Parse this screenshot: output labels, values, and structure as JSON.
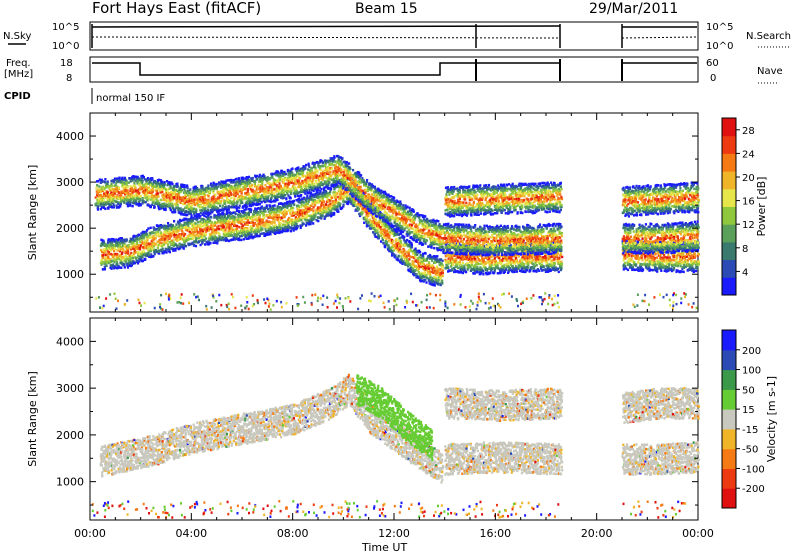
{
  "header": {
    "station": "Fort Hays East (fitACF)",
    "beam": "Beam 15",
    "date": "29/Mar/2011"
  },
  "top_panels": {
    "noise": {
      "left_label": "N.Sky",
      "right_label": "N.Search",
      "left_ticks": [
        "10^5",
        "10^0"
      ],
      "right_ticks": [
        "10^5",
        "10^0"
      ]
    },
    "freq": {
      "left_label_1": "Freq.",
      "left_label_2": "[MHz]",
      "left_ticks": [
        "18",
        "8"
      ],
      "right_label": "Nave",
      "right_ticks": [
        "60",
        "0"
      ]
    },
    "cpid": {
      "label": "CPID",
      "mode": "normal 150 IF"
    }
  },
  "chart_data": [
    {
      "type": "heatmap",
      "quantity": "power",
      "ylabel": "Slant Range [km]",
      "xlabel": "Time UT",
      "x_ticks": [
        "00:00",
        "04:00",
        "08:00",
        "12:00",
        "16:00",
        "20:00",
        "00:00"
      ],
      "x_range_hours": [
        0,
        24
      ],
      "y_ticks": [
        1000,
        2000,
        3000,
        4000
      ],
      "y_range_km": [
        180,
        4500
      ],
      "colorbar": {
        "label": "Power [dB]",
        "ticks": [
          4,
          8,
          12,
          16,
          20,
          24,
          28
        ],
        "range": [
          0,
          30
        ],
        "colors": [
          "#1a1aff",
          "#2b4ab5",
          "#3a7a6e",
          "#5aa05a",
          "#8fc83c",
          "#e6e64b",
          "#f0b429",
          "#f57a14",
          "#ee3a10",
          "#e01010"
        ]
      },
      "data_gap_hours": [
        18.6,
        21.0
      ],
      "echo_bands": [
        {
          "name": "main-band",
          "points": [
            [
              0.4,
              1450
            ],
            [
              1.5,
              1500
            ],
            [
              2.5,
              1750
            ],
            [
              4,
              1950
            ],
            [
              6,
              2100
            ],
            [
              8,
              2300
            ],
            [
              9.5,
              2600
            ],
            [
              10.2,
              2900
            ],
            [
              11,
              2300
            ],
            [
              12,
              1700
            ],
            [
              13,
              1200
            ],
            [
              13.9,
              1050
            ]
          ]
        },
        {
          "name": "upper-band",
          "points": [
            [
              0.2,
              2750
            ],
            [
              2,
              2850
            ],
            [
              4,
              2600
            ],
            [
              6,
              2800
            ],
            [
              8,
              3000
            ],
            [
              9.8,
              3300
            ],
            [
              11,
              2700
            ],
            [
              13,
              2000
            ],
            [
              14,
              1800
            ]
          ]
        },
        {
          "name": "band-16h-low",
          "points": [
            [
              14,
              1400
            ],
            [
              15.5,
              1350
            ],
            [
              17,
              1400
            ],
            [
              18.6,
              1400
            ]
          ]
        },
        {
          "name": "band-16h-mid",
          "points": [
            [
              14,
              1800
            ],
            [
              16,
              1750
            ],
            [
              18.6,
              1800
            ]
          ]
        },
        {
          "name": "band-16h-high",
          "points": [
            [
              14,
              2600
            ],
            [
              16,
              2650
            ],
            [
              18.6,
              2700
            ]
          ]
        },
        {
          "name": "band-22h-low",
          "points": [
            [
              21,
              1450
            ],
            [
              22.5,
              1400
            ],
            [
              24,
              1400
            ]
          ]
        },
        {
          "name": "band-22h-mid",
          "points": [
            [
              21,
              1800
            ],
            [
              22.5,
              1800
            ],
            [
              24,
              1850
            ]
          ]
        },
        {
          "name": "band-22h-high",
          "points": [
            [
              21,
              2600
            ],
            [
              22.5,
              2650
            ],
            [
              24,
              2700
            ]
          ]
        }
      ]
    },
    {
      "type": "heatmap",
      "quantity": "velocity",
      "ylabel": "Slant Range [km]",
      "xlabel": "Time UT",
      "x_ticks": [
        "00:00",
        "04:00",
        "08:00",
        "12:00",
        "16:00",
        "20:00",
        "00:00"
      ],
      "x_range_hours": [
        0,
        24
      ],
      "y_ticks": [
        1000,
        2000,
        3000,
        4000
      ],
      "y_range_km": [
        180,
        4500
      ],
      "colorbar": {
        "label": "Velocity [m s-1]",
        "ticks": [
          -200,
          -100,
          -50,
          -15,
          15,
          50,
          100,
          200
        ],
        "range": [
          -250,
          250
        ],
        "colors": [
          "#e01010",
          "#ee3a10",
          "#f57a14",
          "#f0b429",
          "#c8c8be",
          "#66cc33",
          "#3a9a4a",
          "#2b4ab5",
          "#1a1aff"
        ]
      },
      "data_gap_hours": [
        18.6,
        21.0
      ],
      "echo_bands": [
        {
          "name": "ground-scatter-main",
          "points": [
            [
              0.4,
              1450
            ],
            [
              2.5,
              1700
            ],
            [
              4,
              1950
            ],
            [
              6,
              2150
            ],
            [
              8,
              2350
            ],
            [
              9.5,
              2700
            ],
            [
              10.2,
              3000
            ],
            [
              11,
              2400
            ],
            [
              12.5,
              1800
            ],
            [
              13.9,
              1300
            ]
          ]
        },
        {
          "name": "ionospheric-streak",
          "points": [
            [
              10.5,
              3000
            ],
            [
              11.5,
              2700
            ],
            [
              12.5,
              2200
            ],
            [
              13.5,
              1800
            ]
          ]
        },
        {
          "name": "band-16h",
          "points": [
            [
              14,
              1500
            ],
            [
              16,
              1550
            ],
            [
              18.6,
              1500
            ]
          ]
        },
        {
          "name": "band-16h-high",
          "points": [
            [
              14,
              2700
            ],
            [
              16,
              2650
            ],
            [
              18.6,
              2700
            ]
          ]
        },
        {
          "name": "band-22h",
          "points": [
            [
              21,
              1500
            ],
            [
              22.5,
              1500
            ],
            [
              24,
              1550
            ]
          ]
        },
        {
          "name": "band-22h-high",
          "points": [
            [
              21,
              2600
            ],
            [
              22.5,
              2700
            ],
            [
              24,
              2700
            ]
          ]
        }
      ]
    }
  ]
}
